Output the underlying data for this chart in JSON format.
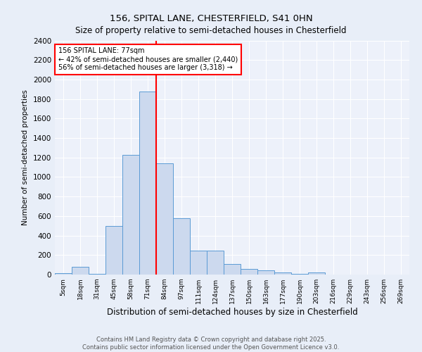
{
  "title": "156, SPITAL LANE, CHESTERFIELD, S41 0HN",
  "subtitle": "Size of property relative to semi-detached houses in Chesterfield",
  "xlabel": "Distribution of semi-detached houses by size in Chesterfield",
  "ylabel": "Number of semi-detached properties",
  "bin_labels": [
    "5sqm",
    "18sqm",
    "31sqm",
    "45sqm",
    "58sqm",
    "71sqm",
    "84sqm",
    "97sqm",
    "111sqm",
    "124sqm",
    "137sqm",
    "150sqm",
    "163sqm",
    "177sqm",
    "190sqm",
    "203sqm",
    "216sqm",
    "229sqm",
    "243sqm",
    "256sqm",
    "269sqm"
  ],
  "bar_heights": [
    15,
    80,
    5,
    500,
    1230,
    1880,
    1140,
    580,
    245,
    245,
    110,
    60,
    40,
    20,
    5,
    20,
    0,
    0,
    0,
    0,
    0
  ],
  "bar_color": "#ccd9ee",
  "bar_edge_color": "#5b9bd5",
  "annotation_title": "156 SPITAL LANE: 77sqm",
  "annotation_line1": "← 42% of semi-detached houses are smaller (2,440)",
  "annotation_line2": "56% of semi-detached houses are larger (3,318) →",
  "vline_color": "red",
  "vline_x": 5.5,
  "ylim": [
    0,
    2400
  ],
  "yticks": [
    0,
    200,
    400,
    600,
    800,
    1000,
    1200,
    1400,
    1600,
    1800,
    2000,
    2200,
    2400
  ],
  "footer": "Contains HM Land Registry data © Crown copyright and database right 2025.\nContains public sector information licensed under the Open Government Licence v3.0.",
  "bg_color": "#e8eef8",
  "plot_bg_color": "#edf1fa"
}
